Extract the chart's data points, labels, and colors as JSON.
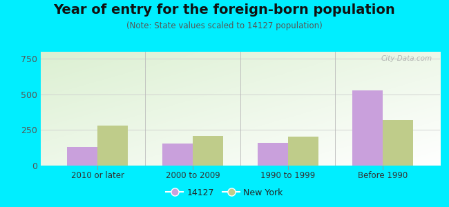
{
  "title": "Year of entry for the foreign-born population",
  "subtitle": "(Note: State values scaled to 14127 population)",
  "categories": [
    "2010 or later",
    "2000 to 2009",
    "1990 to 1999",
    "Before 1990"
  ],
  "values_14127": [
    130,
    155,
    160,
    530
  ],
  "values_ny": [
    280,
    210,
    205,
    320
  ],
  "color_14127": "#c9a0dc",
  "color_ny": "#bfcc8a",
  "background_outer": "#00eeff",
  "ylim": [
    0,
    800
  ],
  "yticks": [
    0,
    250,
    500,
    750
  ],
  "bar_width": 0.32,
  "watermark": "City-Data.com",
  "legend_label_14127": "14127",
  "legend_label_ny": "New York",
  "title_fontsize": 14,
  "subtitle_fontsize": 8.5
}
